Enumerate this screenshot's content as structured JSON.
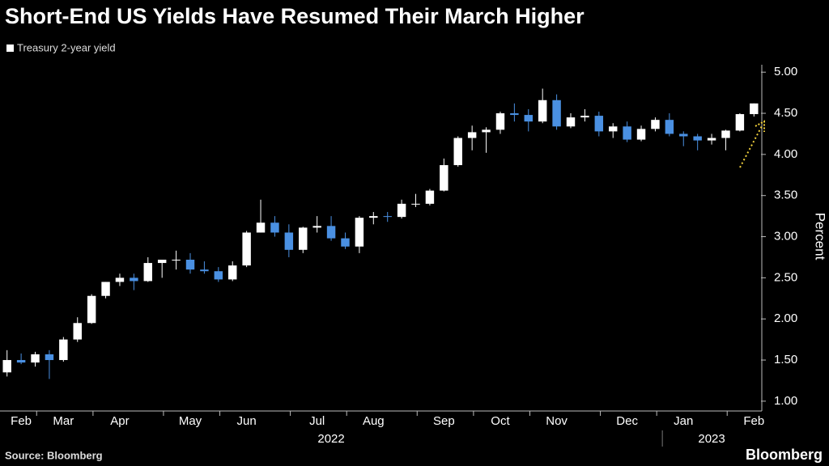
{
  "chart_data": {
    "type": "candlestick",
    "title": "Short-End US Yields Have Resumed Their March Higher",
    "y_axis_label": "Percent",
    "source": "Source: Bloomberg",
    "brand": "Bloomberg",
    "up_color": "#ffffff",
    "down_color": "#4a90e2",
    "annotation_color": "#f2d13c",
    "grid": false,
    "ylim": [
      0.92,
      5.12
    ],
    "yticks": [
      {
        "value": 1,
        "label": "1.00"
      },
      {
        "value": 1.5,
        "label": "1.50"
      },
      {
        "value": 2,
        "label": "2.00"
      },
      {
        "value": 2.5,
        "label": "2.50"
      },
      {
        "value": 3,
        "label": "3.00"
      },
      {
        "value": 3.5,
        "label": "3.50"
      },
      {
        "value": 4,
        "label": "4.00"
      },
      {
        "value": 4.5,
        "label": "4.50"
      },
      {
        "value": 5,
        "label": "5.00"
      }
    ],
    "years": [
      2022,
      2023
    ],
    "categories": [
      null,
      "Feb",
      null,
      null,
      "Mar",
      null,
      null,
      null,
      "Apr",
      null,
      null,
      null,
      null,
      "May",
      null,
      null,
      null,
      "Jun",
      null,
      null,
      null,
      null,
      "Jul",
      null,
      null,
      null,
      "Aug",
      null,
      null,
      null,
      null,
      "Sep",
      null,
      null,
      null,
      "Oct",
      null,
      null,
      null,
      "Nov",
      null,
      null,
      null,
      null,
      "Dec",
      null,
      null,
      null,
      "Jan",
      null,
      null,
      null,
      null,
      "Feb"
    ],
    "series": [
      {
        "name": "Treasury 2-year yield",
        "open": [
          1.35,
          1.5,
          1.47,
          1.57,
          1.5,
          1.75,
          1.95,
          2.28,
          2.45,
          2.5,
          2.46,
          2.68,
          2.72,
          2.72,
          2.6,
          2.58,
          2.48,
          2.65,
          3.05,
          3.17,
          3.05,
          2.84,
          3.11,
          3.13,
          2.98,
          2.88,
          3.23,
          3.25,
          3.24,
          3.4,
          3.4,
          3.56,
          3.87,
          4.2,
          4.27,
          4.3,
          4.5,
          4.48,
          4.4,
          4.66,
          4.34,
          4.45,
          4.47,
          4.28,
          4.34,
          4.18,
          4.31,
          4.42,
          4.25,
          4.22,
          4.17,
          4.2,
          4.29,
          4.49
        ],
        "high": [
          1.62,
          1.58,
          1.6,
          1.62,
          1.78,
          2.02,
          2.3,
          2.45,
          2.55,
          2.55,
          2.75,
          2.72,
          2.83,
          2.8,
          2.7,
          2.63,
          2.7,
          3.07,
          3.45,
          3.25,
          3.15,
          3.12,
          3.25,
          3.25,
          3.05,
          3.25,
          3.3,
          3.3,
          3.45,
          3.52,
          3.58,
          3.95,
          4.22,
          4.35,
          4.33,
          4.52,
          4.62,
          4.55,
          4.8,
          4.73,
          4.5,
          4.55,
          4.52,
          4.38,
          4.4,
          4.35,
          4.45,
          4.5,
          4.28,
          4.25,
          4.25,
          4.3,
          4.5,
          4.62
        ],
        "low": [
          1.3,
          1.45,
          1.42,
          1.27,
          1.48,
          1.72,
          1.94,
          2.25,
          2.4,
          2.35,
          2.45,
          2.5,
          2.6,
          2.55,
          2.55,
          2.45,
          2.46,
          2.63,
          3.05,
          3.0,
          2.75,
          2.8,
          3.05,
          2.95,
          2.85,
          2.8,
          3.15,
          3.18,
          3.22,
          3.36,
          3.38,
          3.55,
          3.85,
          4.05,
          4.02,
          4.25,
          4.4,
          4.28,
          4.38,
          4.3,
          4.32,
          4.4,
          4.22,
          4.2,
          4.15,
          4.16,
          4.28,
          4.22,
          4.1,
          4.05,
          4.12,
          4.05,
          4.28,
          4.46
        ],
        "close": [
          1.5,
          1.47,
          1.57,
          1.5,
          1.75,
          1.95,
          2.28,
          2.45,
          2.5,
          2.46,
          2.68,
          2.72,
          2.72,
          2.6,
          2.58,
          2.48,
          2.65,
          3.05,
          3.17,
          3.05,
          2.84,
          3.11,
          3.13,
          2.98,
          2.88,
          3.23,
          3.25,
          3.24,
          3.4,
          3.4,
          3.56,
          3.87,
          4.2,
          4.27,
          4.3,
          4.5,
          4.48,
          4.4,
          4.66,
          4.34,
          4.45,
          4.47,
          4.28,
          4.34,
          4.18,
          4.31,
          4.42,
          4.25,
          4.22,
          4.17,
          4.2,
          4.29,
          4.49,
          4.62
        ]
      }
    ]
  }
}
